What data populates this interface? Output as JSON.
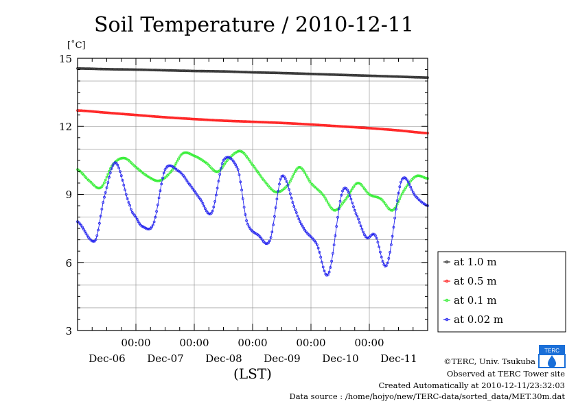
{
  "chart_data": {
    "type": "line",
    "title": "Soil Temperature / 2010-12-11",
    "ylabel": "[˚C]",
    "xlabel": "(LST)",
    "ylim": [
      3,
      15
    ],
    "yticks": [
      3,
      6,
      9,
      12,
      15
    ],
    "x_unit": "days since Dec-06 00:00 LST",
    "xlim": [
      -1,
      5
    ],
    "x_tick_top_labels": [
      "00:00",
      "00:00",
      "00:00",
      "00:00",
      "00:00"
    ],
    "x_tick_bottom_labels": [
      "Dec-06",
      "Dec-07",
      "Dec-08",
      "Dec-09",
      "Dec-10",
      "Dec-11"
    ],
    "grid": true,
    "legend_position": "right",
    "series": [
      {
        "name": "at 1.0 m",
        "color": "#333333",
        "x": [
          -1,
          -0.5,
          0,
          0.5,
          1,
          1.5,
          2,
          2.5,
          3,
          3.5,
          4,
          4.5,
          5
        ],
        "y": [
          14.55,
          14.52,
          14.5,
          14.47,
          14.44,
          14.42,
          14.38,
          14.35,
          14.31,
          14.27,
          14.23,
          14.19,
          14.15
        ]
      },
      {
        "name": "at 0.5 m",
        "color": "#ff2020",
        "x": [
          -1,
          -0.5,
          0,
          0.5,
          1,
          1.5,
          2,
          2.5,
          3,
          3.5,
          4,
          4.5,
          5
        ],
        "y": [
          12.7,
          12.6,
          12.5,
          12.4,
          12.32,
          12.25,
          12.2,
          12.15,
          12.08,
          12.0,
          11.92,
          11.82,
          11.7
        ]
      },
      {
        "name": "at 0.1 m",
        "color": "#33ee33",
        "x": [
          -1,
          -0.8,
          -0.6,
          -0.4,
          -0.2,
          0,
          0.2,
          0.4,
          0.6,
          0.8,
          1,
          1.2,
          1.4,
          1.6,
          1.8,
          2,
          2.2,
          2.4,
          2.6,
          2.8,
          3,
          3.2,
          3.4,
          3.6,
          3.8,
          4,
          4.2,
          4.4,
          4.6,
          4.8,
          5
        ],
        "y": [
          10.1,
          9.6,
          9.3,
          10.3,
          10.6,
          10.2,
          9.8,
          9.6,
          10.0,
          10.8,
          10.7,
          10.4,
          10.0,
          10.6,
          10.9,
          10.3,
          9.6,
          9.1,
          9.4,
          10.2,
          9.5,
          9.0,
          8.3,
          8.8,
          9.5,
          9.0,
          8.8,
          8.3,
          9.2,
          9.8,
          9.7
        ]
      },
      {
        "name": "at 0.02 m",
        "color": "#2222ee",
        "x": [
          -1,
          -0.7,
          -0.55,
          -0.35,
          -0.1,
          0,
          0.1,
          0.3,
          0.5,
          0.75,
          0.9,
          1.1,
          1.3,
          1.5,
          1.75,
          1.9,
          2.1,
          2.3,
          2.5,
          2.75,
          2.9,
          3.1,
          3.3,
          3.55,
          3.8,
          3.95,
          4.1,
          4.3,
          4.55,
          4.8,
          5
        ],
        "y": [
          7.8,
          6.95,
          8.8,
          10.4,
          8.5,
          8.0,
          7.6,
          7.7,
          10.1,
          10.0,
          9.5,
          8.8,
          8.2,
          10.5,
          10.1,
          7.8,
          7.2,
          7.0,
          9.8,
          8.2,
          7.4,
          6.8,
          5.5,
          9.2,
          8.0,
          7.1,
          7.2,
          5.9,
          9.6,
          8.9,
          8.5
        ]
      }
    ]
  },
  "credits": {
    "copyright": "©TERC, Univ. Tsukuba",
    "site": "Observed at TERC Tower site",
    "created": "Created Automatically at 2010-12-11/23:32:03",
    "source": "Data source : /home/hojyo/new/TERC-data/sorted_data/MET.30m.dat",
    "logo_text": "TERC"
  }
}
